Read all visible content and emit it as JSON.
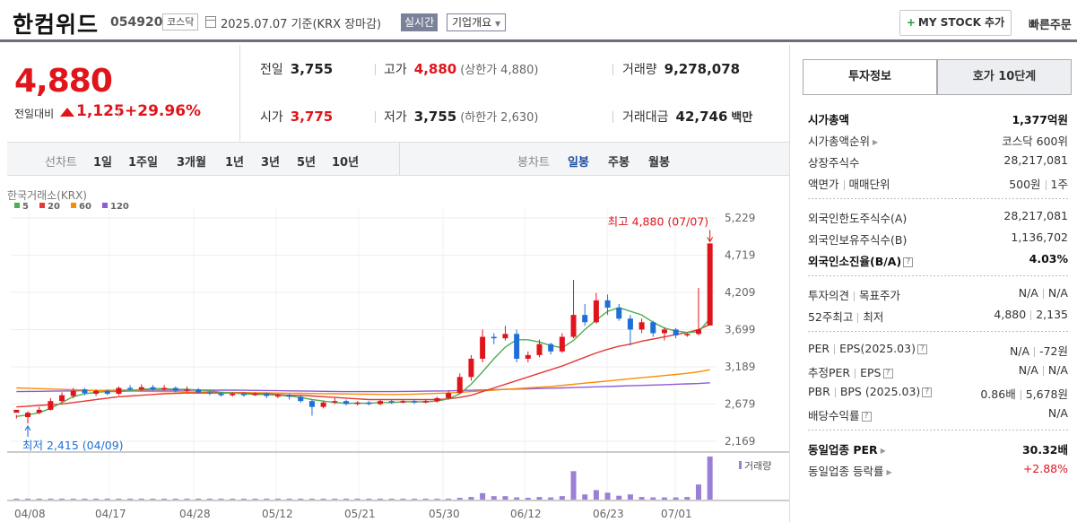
{
  "header": {
    "name": "한컴위드",
    "code": "054920",
    "market": "코스닥",
    "date": "2025.07.07  기준(KRX 장마감)",
    "live_label": "실시간",
    "corp_label": "기업개요",
    "mystock_label": "MY STOCK 추가",
    "quick_order": "빠른주문"
  },
  "price": {
    "current": "4,880",
    "change_label": "전일대비",
    "change": "1,125",
    "pct": "+29.96%"
  },
  "stats": {
    "prev_label": "전일",
    "prev": "3,755",
    "high_label": "고가",
    "high": "4,880",
    "upper_label": "(상한가",
    "upper": "4,880)",
    "volume_label": "거래량",
    "volume": "9,278,078",
    "open_label": "시가",
    "open": "3,775",
    "low_label": "저가",
    "low": "3,755",
    "lower_label": "(하한가",
    "lower": "2,630)",
    "amount_label": "거래대금",
    "amount": "42,746",
    "amount_unit": "백만"
  },
  "toolbar": {
    "line_label": "선차트",
    "line_items": [
      "1일",
      "1주일",
      "3개월",
      "1년",
      "3년",
      "5년",
      "10년"
    ],
    "candle_label": "봉차트",
    "candle_items": [
      "일봉",
      "주봉",
      "월봉"
    ]
  },
  "chart": {
    "source": "한국거래소(KRX)",
    "legend": [
      {
        "label": "5",
        "color": "#4caf50"
      },
      {
        "label": "20",
        "color": "#e53935"
      },
      {
        "label": "60",
        "color": "#fb8c00"
      },
      {
        "label": "120",
        "color": "#8e5ad6"
      }
    ],
    "max_note": "최고 4,880 (07/07)",
    "min_note": "최저 2,415 (04/09)",
    "y_ticks": [
      "5,229",
      "4,719",
      "4,209",
      "3,699",
      "3,189",
      "2,679",
      "2,169"
    ],
    "x_ticks": [
      "04/08",
      "04/17",
      "04/28",
      "05/12",
      "05/21",
      "05/30",
      "06/12",
      "06/23",
      "07/01"
    ],
    "volume_label": "거래량",
    "up_color": "#e0151b",
    "down_color": "#1f6fd6"
  },
  "chart_data": {
    "type": "candlestick",
    "ylim": [
      2169,
      5229
    ],
    "candles": [
      [
        2560,
        2600,
        2530,
        2480
      ],
      [
        2500,
        2560,
        2580,
        2415
      ],
      [
        2560,
        2600,
        2640,
        2540
      ],
      [
        2600,
        2720,
        2760,
        2590
      ],
      [
        2720,
        2800,
        2840,
        2700
      ],
      [
        2790,
        2860,
        2900,
        2760
      ],
      [
        2880,
        2830,
        2900,
        2800
      ],
      [
        2820,
        2860,
        2880,
        2790
      ],
      [
        2860,
        2820,
        2880,
        2800
      ],
      [
        2820,
        2900,
        2920,
        2800
      ],
      [
        2900,
        2880,
        2940,
        2860
      ],
      [
        2880,
        2910,
        2950,
        2860
      ],
      [
        2910,
        2880,
        2940,
        2860
      ],
      [
        2880,
        2900,
        2940,
        2860
      ],
      [
        2900,
        2860,
        2920,
        2840
      ],
      [
        2860,
        2880,
        2920,
        2840
      ],
      [
        2880,
        2840,
        2900,
        2820
      ],
      [
        2840,
        2820,
        2860,
        2800
      ],
      [
        2820,
        2800,
        2840,
        2780
      ],
      [
        2800,
        2820,
        2840,
        2780
      ],
      [
        2820,
        2800,
        2840,
        2780
      ],
      [
        2800,
        2820,
        2840,
        2790
      ],
      [
        2820,
        2790,
        2840,
        2760
      ],
      [
        2790,
        2800,
        2820,
        2760
      ],
      [
        2800,
        2780,
        2820,
        2740
      ],
      [
        2780,
        2720,
        2800,
        2700
      ],
      [
        2720,
        2640,
        2740,
        2520
      ],
      [
        2640,
        2700,
        2720,
        2620
      ],
      [
        2700,
        2720,
        2760,
        2680
      ],
      [
        2720,
        2680,
        2740,
        2660
      ],
      [
        2680,
        2700,
        2720,
        2660
      ],
      [
        2700,
        2680,
        2720,
        2660
      ],
      [
        2680,
        2720,
        2740,
        2660
      ],
      [
        2720,
        2700,
        2740,
        2680
      ],
      [
        2700,
        2720,
        2740,
        2690
      ],
      [
        2720,
        2700,
        2740,
        2680
      ],
      [
        2700,
        2720,
        2740,
        2690
      ],
      [
        2720,
        2760,
        2780,
        2700
      ],
      [
        2760,
        2830,
        2860,
        2740
      ],
      [
        2830,
        3050,
        3100,
        2820
      ],
      [
        3050,
        3300,
        3350,
        3000
      ],
      [
        3300,
        3600,
        3700,
        3250
      ],
      [
        3600,
        3580,
        3650,
        3500
      ],
      [
        3580,
        3640,
        3750,
        3550
      ],
      [
        3640,
        3300,
        3700,
        3250
      ],
      [
        3300,
        3350,
        3400,
        3250
      ],
      [
        3350,
        3500,
        3560,
        3320
      ],
      [
        3500,
        3400,
        3520,
        3360
      ],
      [
        3400,
        3600,
        3650,
        3380
      ],
      [
        3600,
        3900,
        4380,
        3580
      ],
      [
        3900,
        3800,
        4050,
        3750
      ],
      [
        3800,
        4100,
        4200,
        3780
      ],
      [
        4100,
        4000,
        4180,
        3900
      ],
      [
        4000,
        3850,
        4050,
        3820
      ],
      [
        3850,
        3700,
        3900,
        3480
      ],
      [
        3700,
        3800,
        3850,
        3650
      ],
      [
        3800,
        3650,
        3820,
        3600
      ],
      [
        3650,
        3700,
        3730,
        3550
      ],
      [
        3700,
        3620,
        3720,
        3580
      ],
      [
        3620,
        3640,
        3660,
        3600
      ],
      [
        3640,
        3700,
        4270,
        3620
      ],
      [
        3755,
        4880,
        4880,
        3755
      ]
    ],
    "ma5": [
      2510,
      2530,
      2560,
      2620,
      2700,
      2780,
      2820,
      2840,
      2850,
      2850,
      2860,
      2880,
      2890,
      2890,
      2880,
      2880,
      2870,
      2860,
      2840,
      2830,
      2820,
      2810,
      2810,
      2800,
      2790,
      2770,
      2740,
      2720,
      2700,
      2690,
      2690,
      2690,
      2700,
      2700,
      2710,
      2710,
      2710,
      2720,
      2750,
      2820,
      2950,
      3120,
      3300,
      3460,
      3560,
      3560,
      3530,
      3480,
      3450,
      3550,
      3700,
      3830,
      3950,
      4000,
      3950,
      3900,
      3800,
      3720,
      3680,
      3660,
      3670,
      3850
    ],
    "ma20": [
      2640,
      2650,
      2660,
      2670,
      2680,
      2700,
      2720,
      2740,
      2760,
      2780,
      2790,
      2800,
      2810,
      2820,
      2825,
      2830,
      2830,
      2830,
      2830,
      2830,
      2830,
      2820,
      2820,
      2810,
      2800,
      2800,
      2790,
      2780,
      2770,
      2760,
      2750,
      2740,
      2740,
      2740,
      2740,
      2740,
      2740,
      2740,
      2750,
      2770,
      2800,
      2850,
      2900,
      2950,
      3000,
      3050,
      3100,
      3150,
      3200,
      3260,
      3320,
      3380,
      3430,
      3470,
      3500,
      3540,
      3570,
      3600,
      3630,
      3660,
      3700,
      3770
    ],
    "ma60": [
      2900,
      2895,
      2890,
      2885,
      2880,
      2875,
      2870,
      2865,
      2860,
      2858,
      2856,
      2854,
      2852,
      2850,
      2848,
      2846,
      2844,
      2842,
      2840,
      2838,
      2836,
      2834,
      2832,
      2830,
      2828,
      2826,
      2824,
      2822,
      2820,
      2818,
      2816,
      2814,
      2812,
      2810,
      2812,
      2815,
      2820,
      2825,
      2830,
      2840,
      2850,
      2860,
      2870,
      2880,
      2890,
      2900,
      2910,
      2920,
      2935,
      2950,
      2965,
      2980,
      2995,
      3010,
      3025,
      3040,
      3055,
      3070,
      3085,
      3100,
      3120,
      3150
    ],
    "ma120": [
      2850,
      2852,
      2854,
      2856,
      2858,
      2860,
      2862,
      2864,
      2866,
      2868,
      2870,
      2870,
      2870,
      2870,
      2870,
      2870,
      2870,
      2870,
      2870,
      2870,
      2868,
      2866,
      2864,
      2862,
      2860,
      2858,
      2856,
      2854,
      2852,
      2850,
      2850,
      2850,
      2850,
      2850,
      2852,
      2854,
      2856,
      2858,
      2860,
      2864,
      2868,
      2872,
      2876,
      2880,
      2884,
      2888,
      2892,
      2896,
      2900,
      2905,
      2910,
      2915,
      2920,
      2925,
      2930,
      2935,
      2940,
      2945,
      2950,
      2955,
      2960,
      2970
    ],
    "volume_rel": [
      0.01,
      0.01,
      0.01,
      0.01,
      0.01,
      0.01,
      0.01,
      0.01,
      0.01,
      0.01,
      0.01,
      0.01,
      0.01,
      0.01,
      0.01,
      0.01,
      0.01,
      0.01,
      0.01,
      0.01,
      0.01,
      0.01,
      0.01,
      0.01,
      0.01,
      0.01,
      0.02,
      0.01,
      0.01,
      0.01,
      0.01,
      0.01,
      0.01,
      0.01,
      0.01,
      0.01,
      0.01,
      0.01,
      0.02,
      0.04,
      0.06,
      0.15,
      0.08,
      0.08,
      0.05,
      0.04,
      0.06,
      0.05,
      0.08,
      0.66,
      0.12,
      0.22,
      0.16,
      0.09,
      0.12,
      0.06,
      0.05,
      0.05,
      0.05,
      0.06,
      0.35,
      1.0
    ]
  },
  "panel": {
    "tab_active": "투자정보",
    "tab_other": "호가 10단계",
    "g1": [
      {
        "l": "시가총액",
        "r": "1,377억원",
        "lb": true,
        "rb": true
      },
      {
        "l": "시가총액순위",
        "r": "코스닥 600위",
        "arrow": true
      },
      {
        "l": "상장주식수",
        "r": "28,217,081"
      },
      {
        "l": "액면가",
        "l2": "매매단위",
        "r": "500원",
        "r2": "1주"
      }
    ],
    "g2": [
      {
        "l": "외국인한도주식수(A)",
        "r": "28,217,081"
      },
      {
        "l": "외국인보유주식수(B)",
        "r": "1,136,702"
      },
      {
        "l": "외국인소진율(B/A)",
        "r": "4.03%",
        "lb": true,
        "rb": true,
        "q": true
      }
    ],
    "g3": [
      {
        "l": "투자의견",
        "l2": "목표주가",
        "r": "N/A",
        "r2": "N/A"
      },
      {
        "l": "52주최고",
        "l2": "최저",
        "r": "4,880",
        "r2": "2,135"
      }
    ],
    "g4": [
      {
        "l": "PER",
        "l2": "EPS(2025.03)",
        "r": "N/A",
        "r2": "-72원",
        "q": true
      },
      {
        "l": "추정PER",
        "l2": "EPS",
        "r": "N/A",
        "r2": "N/A",
        "q": true
      },
      {
        "l": "PBR",
        "l2": "BPS (2025.03)",
        "r": "0.86배",
        "r2": "5,678원",
        "q": true
      },
      {
        "l": "배당수익률",
        "r": "N/A",
        "q": true
      }
    ],
    "g5": [
      {
        "l": "동일업종 PER",
        "r": "30.32배",
        "lb": true,
        "rb": true,
        "arrow": true
      },
      {
        "l": "동일업종 등락률",
        "r": "+2.88%",
        "red": true,
        "arrow": true
      }
    ]
  }
}
